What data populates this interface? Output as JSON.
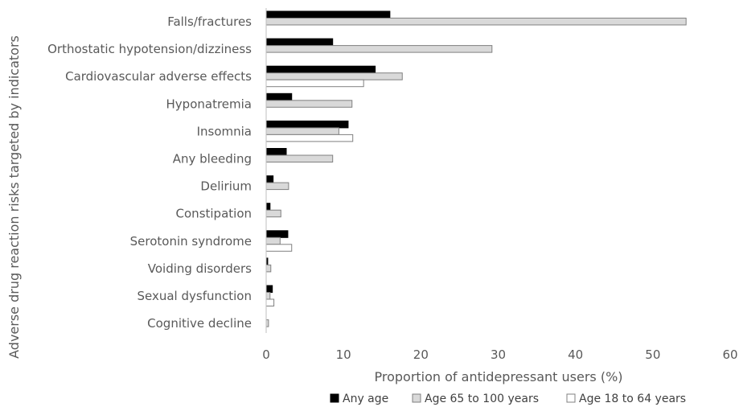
{
  "chart_data": {
    "type": "bar",
    "orientation": "horizontal",
    "categories": [
      "Falls/fractures",
      "Orthostatic hypotension/dizziness",
      "Cardiovascular adverse effects",
      "Hyponatremia",
      "Insomnia",
      "Any bleeding",
      "Delirium",
      "Constipation",
      "Serotonin syndrome",
      "Voiding disorders",
      "Sexual dysfunction",
      "Cognitive decline"
    ],
    "series": [
      {
        "name": "Any age",
        "color": "#000000",
        "values": [
          16.0,
          8.6,
          14.1,
          3.3,
          10.6,
          2.6,
          0.9,
          0.5,
          2.8,
          0.2,
          0.8,
          0.0
        ]
      },
      {
        "name": "Age 65 to 100 years",
        "color": "#d9d9d9",
        "values": [
          54.3,
          29.2,
          17.6,
          11.1,
          9.4,
          8.6,
          2.9,
          1.9,
          1.8,
          0.6,
          0.5,
          0.3
        ]
      },
      {
        "name": "Age 18 to 64 years",
        "color": "#ffffff",
        "values": [
          0,
          0,
          12.6,
          0,
          11.2,
          0,
          0,
          0,
          3.3,
          0,
          1.0,
          0
        ]
      }
    ],
    "xlim": [
      0,
      60
    ],
    "xticks": [
      "0",
      "10",
      "20",
      "30",
      "40",
      "50",
      "60"
    ],
    "xlabel": "Proportion of antidepressant users (%)",
    "ylabel": "Adverse drug reaction risks targeted by indicators",
    "legend_position": "bottom",
    "grid": false
  }
}
